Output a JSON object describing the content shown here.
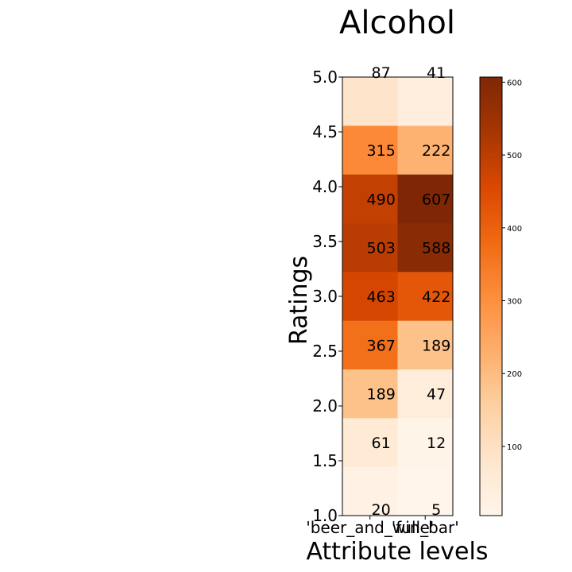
{
  "chart_data": {
    "type": "heatmap",
    "title": "Alcohol",
    "xlabel": "Attribute levels",
    "ylabel": "Ratings",
    "x_categories": [
      "'beer_and_wine'",
      "'full_bar'"
    ],
    "y_categories": [
      "5.0",
      "4.5",
      "4.0",
      "3.5",
      "3.0",
      "2.5",
      "2.0",
      "1.5",
      "1.0"
    ],
    "y_ticks": [
      "5.0",
      "4.5",
      "4.0",
      "3.5",
      "3.0",
      "2.5",
      "2.0",
      "1.5",
      "1.0"
    ],
    "values": [
      [
        87,
        41
      ],
      [
        315,
        222
      ],
      [
        490,
        607
      ],
      [
        503,
        588
      ],
      [
        463,
        422
      ],
      [
        367,
        189
      ],
      [
        189,
        47
      ],
      [
        61,
        12
      ],
      [
        20,
        5
      ]
    ],
    "colorbar": {
      "min": 5,
      "max": 607,
      "ticks": [
        "100",
        "200",
        "300",
        "400",
        "500",
        "600"
      ],
      "colormap": "Oranges"
    },
    "grid": false
  }
}
